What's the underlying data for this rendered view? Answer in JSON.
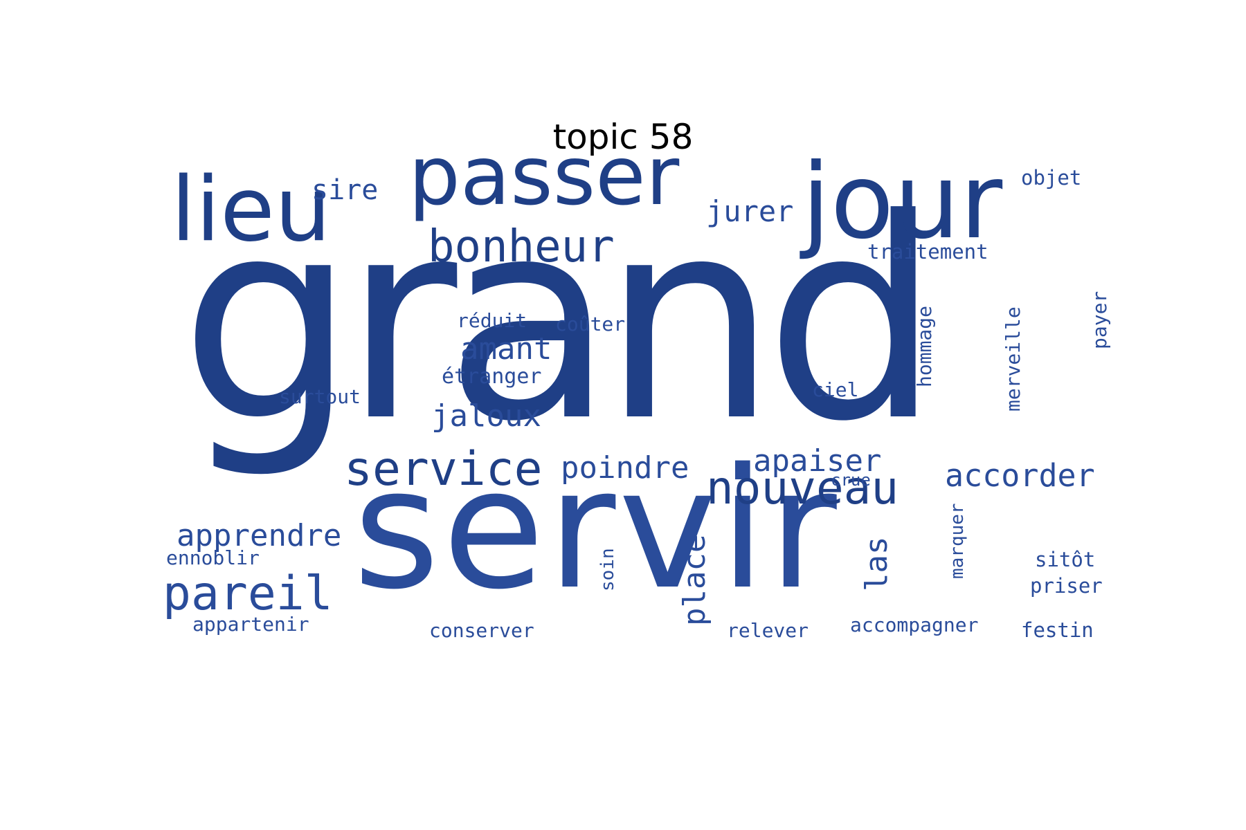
{
  "title": "topic 58",
  "word_color": "#1f3f86",
  "word_color_light": "#2a4c9a",
  "words": {
    "grand": "grand",
    "servir": "servir",
    "jour": "jour",
    "passer": "passer",
    "lieu": "lieu",
    "bonheur": "bonheur",
    "nouveau": "nouveau",
    "service": "service",
    "pareil": "pareil",
    "poindre": "poindre",
    "apaiser": "apaiser",
    "accorder": "accorder",
    "amant": "amant",
    "jaloux": "jaloux",
    "apprendre": "apprendre",
    "jurer": "jurer",
    "place": "place",
    "las": "las",
    "sire": "sire",
    "objet": "objet",
    "traitement": "traitement",
    "payer": "payer",
    "hommage": "hommage",
    "merveille": "merveille",
    "reduit": "réduit",
    "couter": "coûter",
    "etranger": "étranger",
    "surtout": "surtout",
    "ciel": "ciel",
    "crue": "crue",
    "marquer": "marquer",
    "soin": "soin",
    "ennoblir": "ennoblir",
    "sitot": "sitôt",
    "priser": "priser",
    "appartenir": "appartenir",
    "conserver": "conserver",
    "relever": "relever",
    "accompagner": "accompagner",
    "festin": "festin"
  }
}
